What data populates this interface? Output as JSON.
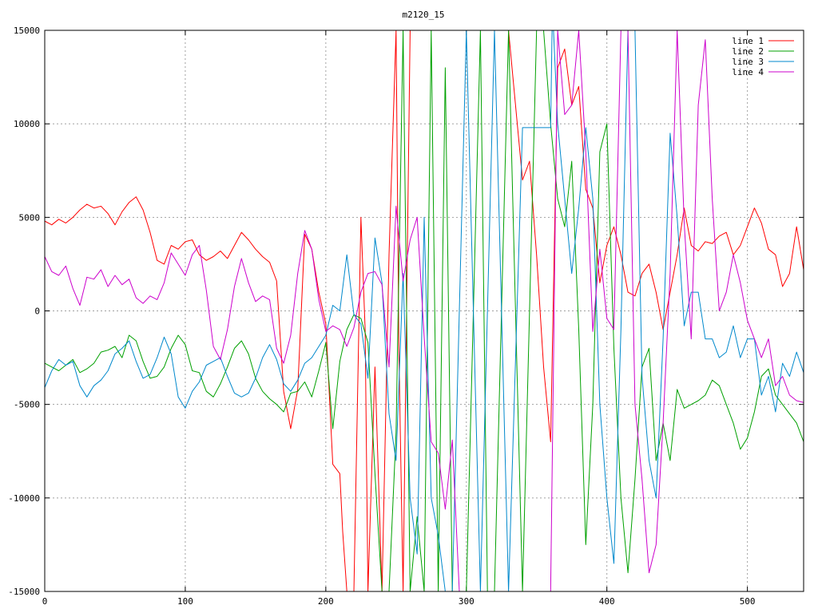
{
  "chart_data": {
    "type": "line",
    "title": "m2120_15",
    "xlabel": "",
    "ylabel": "",
    "xlim": [
      0,
      540
    ],
    "ylim": [
      -15000,
      15000
    ],
    "xticks": [
      0,
      100,
      200,
      300,
      400,
      500
    ],
    "yticks": [
      -15000,
      -10000,
      -5000,
      0,
      5000,
      10000,
      15000
    ],
    "grid": true,
    "legend_position": "top-right",
    "series": [
      {
        "name": "line 1",
        "color": "#ff0000",
        "x": [
          0,
          5,
          10,
          15,
          20,
          25,
          30,
          35,
          40,
          45,
          50,
          55,
          60,
          65,
          70,
          75,
          80,
          85,
          90,
          95,
          100,
          105,
          110,
          115,
          120,
          125,
          130,
          135,
          140,
          145,
          150,
          155,
          160,
          165,
          170,
          175,
          180,
          185,
          190,
          195,
          200,
          205,
          210,
          212,
          215,
          220,
          225,
          228,
          230,
          235,
          240,
          245,
          250,
          252,
          255,
          260,
          270,
          280,
          290,
          300,
          310,
          315,
          320,
          325,
          330,
          340,
          345,
          350,
          355,
          360,
          365,
          370,
          375,
          380,
          385,
          390,
          395,
          400,
          405,
          410,
          415,
          420,
          425,
          430,
          435,
          440,
          445,
          450,
          455,
          460,
          465,
          470,
          475,
          480,
          485,
          490,
          495,
          500,
          505,
          510,
          515,
          520,
          525,
          530,
          535,
          540
        ],
        "y": [
          4800,
          4600,
          4900,
          4700,
          5000,
          5400,
          5700,
          5500,
          5600,
          5200,
          4600,
          5300,
          5800,
          6100,
          5400,
          4200,
          2700,
          2500,
          3500,
          3300,
          3700,
          3800,
          3000,
          2700,
          2900,
          3200,
          2800,
          3500,
          4200,
          3800,
          3300,
          2900,
          2600,
          1600,
          -4300,
          -6300,
          -4200,
          4100,
          3300,
          1000,
          -700,
          -8200,
          -8700,
          -11800,
          -15000,
          -15000,
          5000,
          -1000,
          -15000,
          -3000,
          -15000,
          3000,
          15000,
          -2000,
          -15000,
          15000,
          15000,
          15000,
          15000,
          15000,
          15000,
          15000,
          15000,
          15000,
          15000,
          7000,
          8000,
          3000,
          -3000,
          -7000,
          13000,
          14000,
          11000,
          12000,
          6500,
          5500,
          1500,
          3500,
          4500,
          3000,
          1000,
          800,
          2000,
          2500,
          1000,
          -1000,
          1000,
          3000,
          5500,
          3500,
          3200,
          3700,
          3600,
          4000,
          4200,
          3000,
          3500,
          4500,
          5500,
          4700,
          3300,
          3000,
          1300,
          2000,
          4500,
          2200
        ]
      },
      {
        "name": "line 2",
        "color": "#00a000",
        "x": [
          0,
          5,
          10,
          15,
          20,
          25,
          30,
          35,
          40,
          45,
          50,
          55,
          60,
          65,
          70,
          75,
          80,
          85,
          90,
          95,
          100,
          105,
          110,
          115,
          120,
          125,
          130,
          135,
          140,
          145,
          150,
          155,
          160,
          165,
          170,
          175,
          180,
          185,
          190,
          195,
          200,
          205,
          210,
          215,
          220,
          225,
          230,
          235,
          240,
          245,
          250,
          255,
          260,
          265,
          270,
          275,
          280,
          285,
          290,
          300,
          310,
          315,
          320,
          330,
          340,
          350,
          355,
          360,
          365,
          370,
          375,
          380,
          385,
          390,
          395,
          400,
          405,
          410,
          415,
          420,
          425,
          430,
          435,
          440,
          445,
          450,
          455,
          460,
          465,
          470,
          475,
          480,
          485,
          490,
          495,
          500,
          505,
          510,
          515,
          520,
          525,
          530,
          535,
          540
        ],
        "y": [
          -2800,
          -3000,
          -3200,
          -2900,
          -2600,
          -3300,
          -3100,
          -2800,
          -2200,
          -2100,
          -1900,
          -2500,
          -1300,
          -1600,
          -2700,
          -3600,
          -3500,
          -3000,
          -2000,
          -1300,
          -1800,
          -3200,
          -3300,
          -4300,
          -4600,
          -3900,
          -3000,
          -2000,
          -1600,
          -2300,
          -3600,
          -4300,
          -4700,
          -5000,
          -5400,
          -4400,
          -4300,
          -3800,
          -4600,
          -3200,
          -1700,
          -6300,
          -2700,
          -1000,
          -200,
          -400,
          -1700,
          -8700,
          -15000,
          -15000,
          -6500,
          15000,
          -15000,
          -11000,
          -15000,
          15000,
          -15000,
          13000,
          -15000,
          -15000,
          15000,
          -15000,
          -15000,
          15000,
          -15000,
          15000,
          15000,
          10000,
          6000,
          4500,
          8000,
          -1000,
          -12500,
          -5000,
          8500,
          10000,
          -2000,
          -10000,
          -14000,
          -9000,
          -3000,
          -2000,
          -8000,
          -6000,
          -8000,
          -4200,
          -5200,
          -5000,
          -4800,
          -4500,
          -3700,
          -4000,
          -5000,
          -6000,
          -7400,
          -6800,
          -5400,
          -3500,
          -3100,
          -4500,
          -5000,
          -5500,
          -6000,
          -7000
        ]
      },
      {
        "name": "line 3",
        "color": "#0088cc",
        "x": [
          0,
          5,
          10,
          15,
          20,
          25,
          30,
          35,
          40,
          45,
          50,
          55,
          60,
          65,
          70,
          75,
          80,
          85,
          90,
          95,
          100,
          105,
          110,
          115,
          120,
          125,
          130,
          135,
          140,
          145,
          150,
          155,
          160,
          165,
          170,
          175,
          180,
          185,
          190,
          195,
          200,
          205,
          210,
          215,
          220,
          225,
          230,
          235,
          240,
          245,
          250,
          255,
          260,
          265,
          270,
          275,
          280,
          285,
          290,
          300,
          310,
          320,
          330,
          340,
          341,
          360,
          361,
          362,
          365,
          370,
          375,
          380,
          385,
          390,
          395,
          400,
          405,
          410,
          415,
          420,
          425,
          430,
          435,
          440,
          445,
          450,
          455,
          460,
          465,
          470,
          475,
          480,
          485,
          490,
          495,
          500,
          505,
          510,
          515,
          520,
          525,
          530,
          535,
          540
        ],
        "y": [
          -4100,
          -3200,
          -2600,
          -2900,
          -2700,
          -4000,
          -4600,
          -4000,
          -3700,
          -3200,
          -2300,
          -2000,
          -1600,
          -2700,
          -3600,
          -3400,
          -2500,
          -1400,
          -2300,
          -4600,
          -5200,
          -4300,
          -3800,
          -2900,
          -2700,
          -2500,
          -3500,
          -4400,
          -4600,
          -4400,
          -3600,
          -2500,
          -1800,
          -2600,
          -3900,
          -4300,
          -3700,
          -2800,
          -2500,
          -1900,
          -1300,
          300,
          0,
          3000,
          -200,
          -700,
          -3600,
          3900,
          1500,
          -5500,
          -8000,
          2000,
          -10000,
          -13000,
          5000,
          -10000,
          -12000,
          -15000,
          -15000,
          15000,
          -15000,
          15000,
          -15000,
          9800,
          9800,
          9800,
          15000,
          15000,
          10000,
          6000,
          2000,
          5500,
          9800,
          6000,
          -5000,
          -10000,
          -13500,
          -1000,
          15000,
          15000,
          -3500,
          -8000,
          -10000,
          -1500,
          9500,
          5000,
          -800,
          1000,
          1000,
          -1500,
          -1500,
          -2500,
          -2200,
          -800,
          -2500,
          -1500,
          -1500,
          -4500,
          -3500,
          -5400,
          -2800,
          -3500,
          -2200,
          -3300
        ]
      },
      {
        "name": "line 4",
        "color": "#cc00cc",
        "x": [
          0,
          5,
          10,
          15,
          20,
          25,
          30,
          35,
          40,
          45,
          50,
          55,
          60,
          65,
          70,
          75,
          80,
          85,
          90,
          95,
          100,
          105,
          110,
          115,
          120,
          125,
          130,
          135,
          140,
          145,
          150,
          155,
          160,
          165,
          170,
          175,
          180,
          185,
          190,
          195,
          200,
          205,
          210,
          215,
          220,
          225,
          230,
          235,
          240,
          245,
          250,
          255,
          260,
          265,
          270,
          275,
          280,
          285,
          290,
          295,
          300,
          310,
          320,
          330,
          340,
          350,
          360,
          365,
          370,
          375,
          380,
          385,
          390,
          395,
          400,
          405,
          410,
          415,
          420,
          425,
          430,
          435,
          440,
          445,
          450,
          455,
          460,
          465,
          470,
          475,
          480,
          485,
          490,
          495,
          500,
          505,
          510,
          515,
          520,
          525,
          530,
          535,
          540
        ],
        "y": [
          2900,
          2100,
          1900,
          2400,
          1200,
          300,
          1800,
          1700,
          2200,
          1300,
          1900,
          1400,
          1700,
          700,
          400,
          800,
          600,
          1500,
          3100,
          2500,
          1900,
          3000,
          3500,
          1100,
          -1900,
          -2600,
          -1000,
          1300,
          2800,
          1500,
          500,
          800,
          600,
          -2000,
          -2800,
          -1300,
          2000,
          4300,
          3300,
          600,
          -1100,
          -800,
          -1000,
          -1900,
          -900,
          1000,
          2000,
          2100,
          1400,
          -3000,
          5600,
          1600,
          3800,
          5000,
          -1400,
          -7000,
          -7600,
          -10600,
          -6900,
          -15000,
          -15000,
          -15000,
          -15000,
          -15000,
          -15000,
          -15000,
          -15000,
          15000,
          10500,
          11000,
          15000,
          8500,
          -1100,
          3300,
          -400,
          -1000,
          15000,
          15000,
          -5000,
          -9000,
          -14000,
          -12500,
          -6000,
          2000,
          15000,
          4700,
          -1500,
          11000,
          14500,
          6000,
          0,
          1000,
          3000,
          1500,
          -500,
          -1500,
          -2500,
          -1500,
          -4000,
          -3500,
          -4500,
          -4800,
          -4900
        ]
      }
    ]
  }
}
